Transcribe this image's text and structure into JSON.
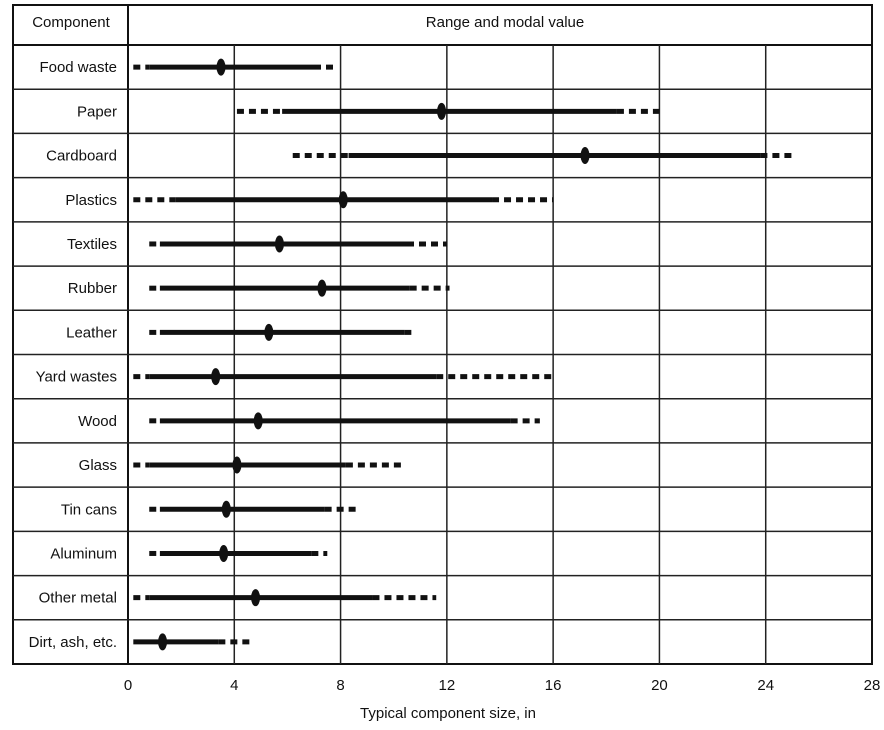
{
  "chart_data": {
    "type": "range",
    "header": {
      "component": "Component",
      "range": "Range and modal value"
    },
    "xlabel": "Typical component size, in",
    "xlim": [
      0,
      28
    ],
    "xticks": [
      0,
      4,
      8,
      12,
      16,
      20,
      24,
      28
    ],
    "grid": true,
    "rows": [
      {
        "label": "Food waste",
        "dash_min": 0.2,
        "solid_min": 0.8,
        "mode": 3.5,
        "solid_max": 7.0,
        "dash_max": 7.9
      },
      {
        "label": "Paper",
        "dash_min": 4.1,
        "solid_min": 5.8,
        "mode": 11.8,
        "solid_max": 18.4,
        "dash_max": 20.0
      },
      {
        "label": "Cardboard",
        "dash_min": 6.2,
        "solid_min": 8.3,
        "mode": 17.2,
        "solid_max": 23.8,
        "dash_max": 25.1
      },
      {
        "label": "Plastics",
        "dash_min": 0.2,
        "solid_min": 1.8,
        "mode": 8.1,
        "solid_max": 13.7,
        "dash_max": 16.0
      },
      {
        "label": "Textiles",
        "dash_min": 0.8,
        "solid_min": 1.2,
        "mode": 5.7,
        "solid_max": 10.5,
        "dash_max": 12.0
      },
      {
        "label": "Rubber",
        "dash_min": 0.8,
        "solid_min": 1.2,
        "mode": 7.3,
        "solid_max": 10.6,
        "dash_max": 12.1
      },
      {
        "label": "Leather",
        "dash_min": 0.8,
        "solid_min": 1.2,
        "mode": 5.3,
        "solid_max": 10.4,
        "dash_max": 10.8
      },
      {
        "label": "Yard wastes",
        "dash_min": 0.2,
        "solid_min": 0.8,
        "mode": 3.3,
        "solid_max": 11.6,
        "dash_max": 16.0
      },
      {
        "label": "Wood",
        "dash_min": 0.8,
        "solid_min": 1.2,
        "mode": 4.9,
        "solid_max": 14.4,
        "dash_max": 15.5
      },
      {
        "label": "Glass",
        "dash_min": 0.2,
        "solid_min": 0.8,
        "mode": 4.1,
        "solid_max": 8.2,
        "dash_max": 10.4
      },
      {
        "label": "Tin cans",
        "dash_min": 0.8,
        "solid_min": 1.2,
        "mode": 3.7,
        "solid_max": 7.4,
        "dash_max": 8.6
      },
      {
        "label": "Aluminum",
        "dash_min": 0.8,
        "solid_min": 1.2,
        "mode": 3.6,
        "solid_max": 6.9,
        "dash_max": 7.5
      },
      {
        "label": "Other metal",
        "dash_min": 0.2,
        "solid_min": 0.8,
        "mode": 4.8,
        "solid_max": 9.2,
        "dash_max": 11.6
      },
      {
        "label": "Dirt, ash, etc.",
        "dash_min": 0.2,
        "solid_min": 0.2,
        "mode": 1.3,
        "solid_max": 3.4,
        "dash_max": 4.6
      }
    ]
  }
}
